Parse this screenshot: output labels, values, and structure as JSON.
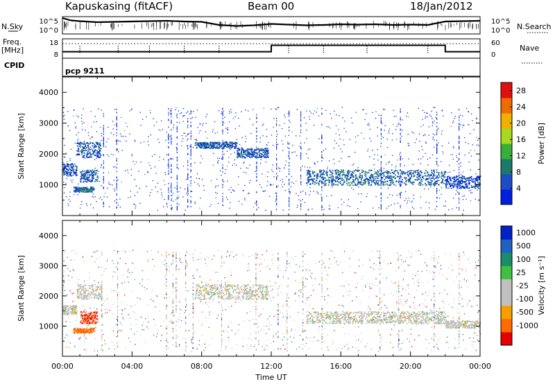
{
  "header": {
    "station": "Kapuskasing (fitACF)",
    "beam": "Beam 00",
    "date": "18/Jan/2012"
  },
  "sky_panel": {
    "left_label": "N.Sky",
    "left_ticks": [
      "10^5",
      "10^0"
    ],
    "right_label": "N.Search",
    "right_ticks": [
      "10^5",
      "10^0"
    ],
    "trace": [
      [
        0,
        4.6
      ],
      [
        0.5,
        3.9
      ],
      [
        1,
        3.7
      ],
      [
        2,
        3.4
      ],
      [
        3,
        3.5
      ],
      [
        4,
        3.6
      ],
      [
        5,
        3.7
      ],
      [
        6,
        3.8
      ],
      [
        7,
        3.6
      ],
      [
        8,
        3.5
      ],
      [
        9,
        2.6
      ],
      [
        10,
        2.3
      ],
      [
        11,
        2.5
      ],
      [
        12,
        2.9
      ],
      [
        13,
        2.7
      ],
      [
        14,
        2.5
      ],
      [
        15,
        2.6
      ],
      [
        16,
        2.8
      ],
      [
        17,
        2.7
      ],
      [
        18,
        2.8
      ],
      [
        19,
        2.6
      ],
      [
        20,
        2.7
      ],
      [
        21,
        2.6
      ],
      [
        22,
        3.6
      ],
      [
        23,
        3.7
      ],
      [
        24,
        3.8
      ]
    ]
  },
  "freq_panel": {
    "left_label_1": "Freq.",
    "left_label_2": "[MHz]",
    "left_ticks": [
      "18",
      "8"
    ],
    "right_label": "Nave",
    "right_ticks": [
      "60",
      "0"
    ],
    "cpid_label": "CPID",
    "program": "pcp 9211",
    "freq_steps": [
      [
        0,
        10
      ],
      [
        12,
        15
      ],
      [
        22,
        10
      ],
      [
        24,
        10
      ]
    ]
  },
  "colors": {
    "frame": "#000000",
    "power_scale": [
      "#0020e0",
      "#1e4cc8",
      "#1d7a6a",
      "#37b03a",
      "#a8d820",
      "#f0b000",
      "#f06a00",
      "#e01010"
    ],
    "velocity_scale": [
      "#e80000",
      "#ff6a00",
      "#f4a000",
      "#c0c0c0",
      "#c0c0c0",
      "#40c040",
      "#1a8c6a",
      "#2060c0",
      "#0020c8"
    ]
  },
  "chart_data": [
    {
      "type": "heatmap",
      "title": "",
      "xlabel": "Time UT",
      "ylabel": "Slant Range [km]",
      "xlim": [
        0,
        24
      ],
      "ylim": [
        0,
        4500
      ],
      "x_ticks": [
        "00:00",
        "04:00",
        "08:00",
        "12:00",
        "16:00",
        "20:00",
        "00:00"
      ],
      "y_ticks": [
        "1000",
        "2000",
        "3000",
        "4000"
      ],
      "colorbar": {
        "label": "Power [dB]",
        "ticks": [
          "4",
          "8",
          "12",
          "16",
          "20",
          "24",
          "28"
        ],
        "range": [
          0,
          30
        ]
      },
      "echo_regions": [
        {
          "t0": 0.0,
          "t1": 0.8,
          "r0": 1300,
          "r1": 1700,
          "power": 6
        },
        {
          "t0": 0.8,
          "t1": 2.2,
          "r0": 1900,
          "r1": 2400,
          "power": 6
        },
        {
          "t0": 0.6,
          "t1": 1.8,
          "r0": 780,
          "r1": 950,
          "power": 8
        },
        {
          "t0": 1.0,
          "t1": 2.0,
          "r0": 1100,
          "r1": 1500,
          "power": 7
        },
        {
          "t0": 7.6,
          "t1": 10.0,
          "r0": 2200,
          "r1": 2400,
          "power": 6
        },
        {
          "t0": 10.0,
          "t1": 11.8,
          "r0": 1900,
          "r1": 2200,
          "power": 6
        },
        {
          "t0": 14.0,
          "t1": 22.0,
          "r0": 1000,
          "r1": 1500,
          "power": 7
        },
        {
          "t0": 22.0,
          "t1": 24.0,
          "r0": 900,
          "r1": 1300,
          "power": 5
        }
      ]
    },
    {
      "type": "heatmap",
      "title": "",
      "xlabel": "Time UT",
      "ylabel": "Slant Range [km]",
      "xlim": [
        0,
        24
      ],
      "ylim": [
        0,
        4500
      ],
      "x_ticks": [
        "00:00",
        "04:00",
        "08:00",
        "12:00",
        "16:00",
        "20:00",
        "00:00"
      ],
      "y_ticks": [
        "1000",
        "2000",
        "3000",
        "4000"
      ],
      "colorbar": {
        "label": "Velocity [m s⁻¹]",
        "ticks": [
          "1000",
          "500",
          "100",
          "25",
          "-25",
          "-100",
          "-500",
          "-1000"
        ],
        "range": [
          -1000,
          1000
        ]
      },
      "echo_regions": [
        {
          "t0": 0.0,
          "t1": 0.8,
          "r0": 1400,
          "r1": 1700,
          "velocity": 0
        },
        {
          "t0": 0.8,
          "t1": 2.2,
          "r0": 1900,
          "r1": 2400,
          "velocity": 0
        },
        {
          "t0": 1.0,
          "t1": 2.0,
          "r0": 1100,
          "r1": 1500,
          "velocity": -500
        },
        {
          "t0": 0.6,
          "t1": 1.8,
          "r0": 780,
          "r1": 950,
          "velocity": -300
        },
        {
          "t0": 7.6,
          "t1": 11.8,
          "r0": 1900,
          "r1": 2400,
          "velocity": 0
        },
        {
          "t0": 14.0,
          "t1": 22.0,
          "r0": 1100,
          "r1": 1500,
          "velocity": 0
        },
        {
          "t0": 22.0,
          "t1": 24.0,
          "r0": 950,
          "r1": 1200,
          "velocity": 0
        }
      ]
    }
  ]
}
